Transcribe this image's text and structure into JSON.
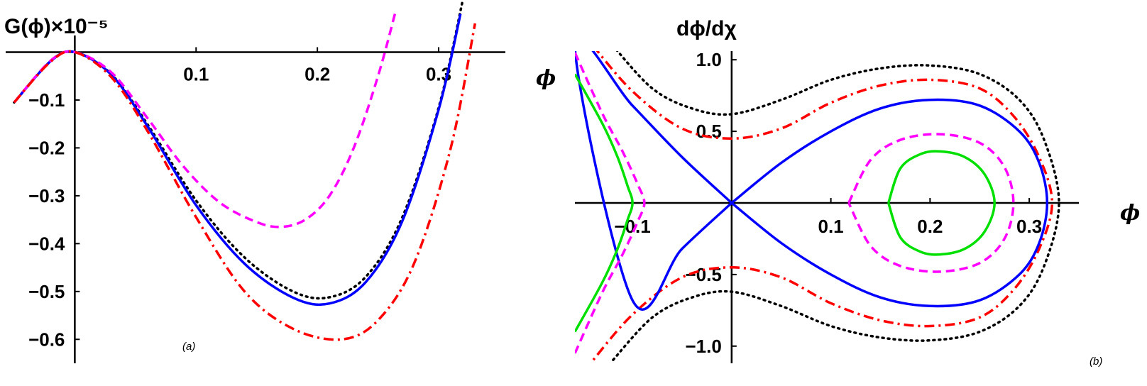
{
  "chart_data": [
    {
      "type": "line",
      "panel_label": "(a)",
      "xlabel": "ϕ",
      "ylabel": "G(ϕ)×10⁻⁵",
      "xlim": [
        -0.057,
        0.355
      ],
      "ylim": [
        -0.65,
        0.02
      ],
      "x_ticks": [
        {
          "v": 0.1,
          "label": "0.1"
        },
        {
          "v": 0.2,
          "label": "0.2"
        },
        {
          "v": 0.3,
          "label": "0.3"
        }
      ],
      "y_ticks": [
        {
          "v": -0.1,
          "label": "−0.1"
        },
        {
          "v": -0.2,
          "label": "−0.2"
        },
        {
          "v": -0.3,
          "label": "−0.3"
        },
        {
          "v": -0.4,
          "label": "−0.4"
        },
        {
          "v": -0.5,
          "label": "−0.5"
        },
        {
          "v": -0.6,
          "label": "−0.6"
        }
      ],
      "series": [
        {
          "style": "dotted",
          "color": "#000000",
          "x": [
            -0.05,
            -0.02,
            0,
            0.03,
            0.06,
            0.1,
            0.14,
            0.18,
            0.21,
            0.24,
            0.27,
            0.3,
            0.32
          ],
          "y": [
            -0.105,
            -0.019,
            0,
            -0.046,
            -0.151,
            -0.31,
            -0.429,
            -0.5,
            -0.512,
            -0.469,
            -0.345,
            -0.116,
            0.11
          ]
        },
        {
          "style": "solid",
          "color": "#0000ff",
          "x": [
            -0.05,
            -0.02,
            0,
            0.03,
            0.06,
            0.1,
            0.14,
            0.18,
            0.21,
            0.24,
            0.27,
            0.3,
            0.318
          ],
          "y": [
            -0.105,
            -0.019,
            0,
            -0.047,
            -0.155,
            -0.32,
            -0.442,
            -0.513,
            -0.525,
            -0.48,
            -0.353,
            -0.12,
            0.08
          ]
        },
        {
          "style": "dashed",
          "color": "#ff00ff",
          "x": [
            -0.05,
            -0.02,
            0,
            0.03,
            0.06,
            0.09,
            0.12,
            0.15,
            0.17,
            0.19,
            0.21,
            0.23,
            0.25,
            0.265
          ],
          "y": [
            -0.105,
            -0.018,
            0,
            -0.042,
            -0.138,
            -0.24,
            -0.315,
            -0.355,
            -0.365,
            -0.35,
            -0.3,
            -0.2,
            -0.05,
            0.09
          ]
        },
        {
          "style": "dashdot",
          "color": "#ff0000",
          "x": [
            -0.05,
            -0.02,
            0,
            0.03,
            0.06,
            0.1,
            0.14,
            0.18,
            0.22,
            0.25,
            0.28,
            0.31,
            0.33
          ],
          "y": [
            -0.105,
            -0.02,
            0,
            -0.052,
            -0.165,
            -0.345,
            -0.5,
            -0.578,
            -0.6,
            -0.56,
            -0.44,
            -0.2,
            0.06
          ]
        }
      ]
    },
    {
      "type": "line",
      "panel_label": "(b)",
      "xlabel": "ϕ",
      "ylabel": "dϕ/dχ",
      "xlim": [
        -0.158,
        0.35
      ],
      "ylim": [
        -1.12,
        1.12
      ],
      "x_ticks": [
        {
          "v": -0.1,
          "label": "−0.1"
        },
        {
          "v": 0.1,
          "label": "0.1"
        },
        {
          "v": 0.2,
          "label": "0.2"
        },
        {
          "v": 0.3,
          "label": "0.3"
        }
      ],
      "y_ticks": [
        {
          "v": -1.0,
          "label": "−1.0"
        },
        {
          "v": -0.5,
          "label": "−0.5"
        },
        {
          "v": 0.5,
          "label": "0.5"
        },
        {
          "v": 1.0,
          "label": "1.0"
        }
      ],
      "series": [
        {
          "style": "dotted",
          "color": "#000000",
          "shape": "outer_open",
          "x": [
            -0.12,
            -0.08,
            -0.04,
            0,
            0.05,
            0.1,
            0.15,
            0.2,
            0.25,
            0.29,
            0.315,
            0.33
          ],
          "y": [
            1.1,
            0.8,
            0.66,
            0.62,
            0.72,
            0.86,
            0.94,
            0.96,
            0.9,
            0.72,
            0.44,
            0
          ]
        },
        {
          "style": "dashdot",
          "color": "#ff0000",
          "shape": "outer_open",
          "x": [
            -0.14,
            -0.1,
            -0.05,
            0,
            0.05,
            0.1,
            0.15,
            0.2,
            0.25,
            0.285,
            0.31,
            0.323
          ],
          "y": [
            1.1,
            0.78,
            0.52,
            0.45,
            0.52,
            0.7,
            0.82,
            0.86,
            0.8,
            0.6,
            0.32,
            0
          ]
        },
        {
          "style": "solid",
          "color": "#0000ff",
          "shape": "separatrix_loop",
          "x": [
            0,
            0.05,
            0.1,
            0.15,
            0.2,
            0.25,
            0.29,
            0.31,
            0.318
          ],
          "y": [
            0,
            0.28,
            0.5,
            0.66,
            0.72,
            0.68,
            0.5,
            0.28,
            0
          ]
        },
        {
          "style": "solid",
          "color": "#0000ff",
          "shape": "separatrix_tail",
          "x": [
            0,
            -0.05,
            -0.1,
            -0.158
          ],
          "y": [
            0,
            0.32,
            0.68,
            1.1
          ]
        },
        {
          "style": "dashed",
          "color": "#ff00ff",
          "shape": "closed",
          "x": [
            0.118,
            0.14,
            0.17,
            0.21,
            0.25,
            0.275,
            0.284
          ],
          "y": [
            0,
            0.3,
            0.44,
            0.48,
            0.42,
            0.25,
            0
          ]
        },
        {
          "style": "solid",
          "color": "#00e000",
          "shape": "closed",
          "x": [
            0.158,
            0.17,
            0.19,
            0.21,
            0.235,
            0.255,
            0.265
          ],
          "y": [
            0,
            0.24,
            0.34,
            0.36,
            0.32,
            0.2,
            0
          ]
        },
        {
          "style": "dashed",
          "color": "#ff00ff",
          "shape": "left_arc",
          "x": [
            -0.158,
            -0.13,
            -0.11,
            -0.094,
            -0.088
          ],
          "y": [
            1.05,
            0.62,
            0.36,
            0.12,
            0
          ]
        },
        {
          "style": "solid",
          "color": "#00e000",
          "shape": "left_arc",
          "x": [
            -0.158,
            -0.13,
            -0.115,
            -0.105,
            -0.1
          ],
          "y": [
            0.9,
            0.55,
            0.32,
            0.12,
            0
          ]
        }
      ]
    }
  ],
  "colors": {
    "black": "#000000",
    "blue": "#0000ff",
    "magenta": "#ff00ff",
    "red": "#ff0000",
    "green": "#00e000"
  }
}
